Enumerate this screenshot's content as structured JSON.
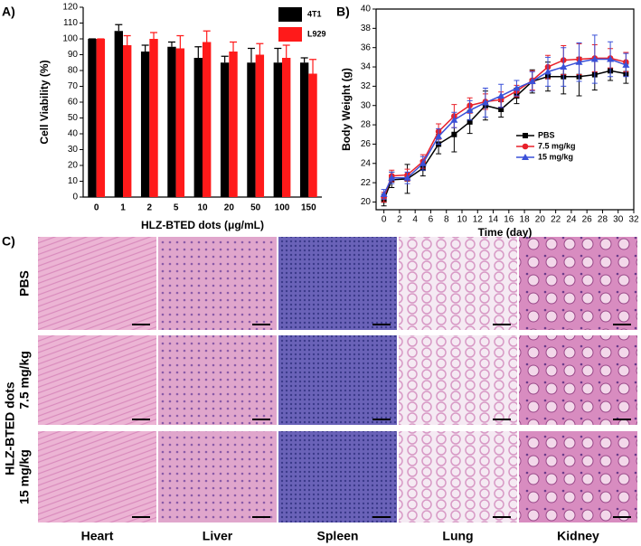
{
  "chart_data": [
    {
      "type": "bar",
      "panel_label": "A)",
      "xlabel": "HLZ-BTED dots (μg/mL)",
      "ylabel": "Cell Viability (%)",
      "categories": [
        "0",
        "1",
        "2",
        "5",
        "10",
        "20",
        "50",
        "100",
        "150"
      ],
      "series": [
        {
          "name": "4T1",
          "color": "#000000",
          "values": [
            100,
            105,
            92,
            95,
            88,
            85,
            85,
            85,
            85
          ],
          "errors": [
            0,
            4,
            4,
            3,
            7,
            4,
            9,
            9,
            3
          ]
        },
        {
          "name": "L929",
          "color": "#ff1a1a",
          "values": [
            100,
            96,
            100,
            94,
            98,
            92,
            90,
            88,
            78
          ],
          "errors": [
            0,
            6,
            4,
            8,
            7,
            6,
            7,
            8,
            9
          ]
        }
      ],
      "ylim": [
        0,
        120
      ],
      "yticks": [
        0,
        10,
        20,
        30,
        40,
        50,
        60,
        70,
        80,
        90,
        100,
        110,
        120
      ],
      "legend": "upper right"
    },
    {
      "type": "line",
      "panel_label": "B)",
      "xlabel": "Time (day)",
      "ylabel": "Body Weight (g)",
      "x": [
        0,
        1,
        3,
        5,
        7,
        9,
        11,
        13,
        15,
        17,
        19,
        21,
        23,
        25,
        27,
        29,
        31
      ],
      "series": [
        {
          "name": "PBS",
          "color": "#000000",
          "marker": "square",
          "values": [
            20.2,
            22.3,
            22.4,
            23.5,
            26,
            27,
            28.3,
            30,
            29.6,
            31,
            32.5,
            33,
            33,
            33,
            33.2,
            33.6,
            33.3
          ],
          "errors": [
            0.6,
            0.8,
            1.5,
            0.8,
            1,
            1.8,
            1.2,
            1.5,
            0.8,
            0.8,
            1.2,
            1.5,
            1.8,
            2,
            1.6,
            1,
            1
          ]
        },
        {
          "name": "7.5 mg/kg",
          "color": "#e8202a",
          "marker": "circle",
          "values": [
            20.5,
            22.7,
            22.8,
            24.2,
            27.3,
            28.9,
            30,
            30.4,
            30.6,
            31.5,
            32.6,
            34,
            34.7,
            34.8,
            34.9,
            34.9,
            34.5
          ],
          "errors": [
            0.5,
            0.6,
            0.6,
            0.7,
            0.8,
            1.2,
            0.8,
            0.8,
            0.8,
            0.6,
            1,
            1.2,
            1.5,
            1.6,
            1.4,
            1,
            1
          ]
        },
        {
          "name": "15 mg/kg",
          "color": "#3a50d8",
          "marker": "triangle",
          "values": [
            20.8,
            22.5,
            22.5,
            24,
            26.8,
            28.5,
            29.5,
            30.3,
            31,
            31.8,
            32.5,
            33.5,
            34,
            34.5,
            34.8,
            34.8,
            34.2
          ],
          "errors": [
            0.5,
            0.6,
            0.6,
            0.7,
            0.8,
            0.8,
            1,
            1.5,
            1.2,
            0.8,
            1,
            1.5,
            2,
            2,
            2.5,
            1.8,
            1.2
          ]
        }
      ],
      "xlim": [
        -1,
        32
      ],
      "xticks": [
        0,
        2,
        4,
        6,
        8,
        10,
        12,
        14,
        16,
        18,
        20,
        22,
        24,
        26,
        28,
        30,
        32
      ],
      "ylim": [
        19.2,
        40
      ],
      "yticks": [
        20,
        22,
        24,
        26,
        28,
        30,
        32,
        34,
        36,
        38,
        40
      ],
      "legend": "center right"
    }
  ],
  "histology": {
    "panel_label": "C)",
    "group_title": "HLZ-BTED dots",
    "rows": [
      "PBS",
      "7.5 mg/kg",
      "15 mg/kg"
    ],
    "tissues": [
      "Heart",
      "Liver",
      "Spleen",
      "Lung",
      "Kidney"
    ]
  }
}
